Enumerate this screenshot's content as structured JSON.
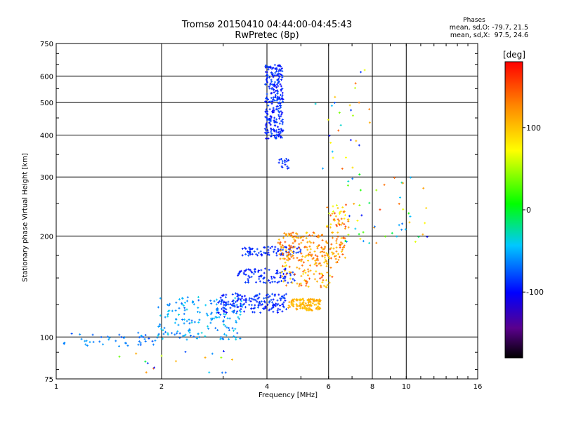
{
  "header": {
    "title_line1": "Tromsø 20150410 04:44:00-04:45:43",
    "title_line2": "RwPretec (8p)",
    "phase_label": "Phases",
    "phase_o": "mean, sd,O: -79.7, 21.5",
    "phase_x": "mean, sd,X:  97.5, 24.6"
  },
  "colorbar": {
    "title": "[deg]",
    "ticks": [
      "100",
      "0",
      "-100"
    ],
    "tick_values": [
      100,
      0,
      -100
    ],
    "range": [
      -180,
      180
    ]
  },
  "chart_data": {
    "type": "scatter",
    "xlabel": "Frequency [MHz]",
    "ylabel": "Stationary phase Virtual Height [km]",
    "xscale": "log",
    "yscale": "log",
    "xlim": [
      1,
      16
    ],
    "ylim": [
      75,
      750
    ],
    "xticks": [
      1,
      2,
      4,
      6,
      8,
      10,
      16
    ],
    "xtick_labels": [
      "1",
      "2",
      "4",
      "6",
      "8",
      "10",
      "16"
    ],
    "yticks": [
      75,
      100,
      200,
      300,
      400,
      500,
      600,
      750
    ],
    "ytick_labels": [
      "75",
      "100",
      "200",
      "300",
      "400",
      "500",
      "600",
      "750"
    ],
    "grid": true,
    "color_variable": "phase [deg]",
    "point_groups": [
      {
        "kind": "O-mode E/F1 trace",
        "freq": [
          1.05,
          1.95
        ],
        "height": [
          93,
          103
        ],
        "phase": [
          -80,
          -50
        ],
        "count": 45
      },
      {
        "kind": "O-mode rising trace",
        "freq": [
          1.95,
          3.4
        ],
        "height": [
          98,
          132
        ],
        "phase": [
          -75,
          -35
        ],
        "count": 170
      },
      {
        "kind": "O-mode F1 trace",
        "freq": [
          2.9,
          4.6
        ],
        "height": [
          118,
          135
        ],
        "phase": [
          -100,
          -75
        ],
        "count": 170
      },
      {
        "kind": "O-mode F1 layer",
        "freq": [
          3.3,
          4.8
        ],
        "height": [
          145,
          160
        ],
        "phase": [
          -100,
          -80
        ],
        "count": 90
      },
      {
        "kind": "O-mode F2 band",
        "freq": [
          3.4,
          5.0
        ],
        "height": [
          175,
          186
        ],
        "phase": [
          -100,
          -75
        ],
        "count": 80
      },
      {
        "kind": "O-mode spread F",
        "freq": [
          3.95,
          4.45
        ],
        "height": [
          390,
          650
        ],
        "phase": [
          -105,
          -75
        ],
        "count": 260
      },
      {
        "kind": "O-mode upper branch",
        "freq": [
          4.3,
          4.65
        ],
        "height": [
          315,
          340
        ],
        "phase": [
          -95,
          -75
        ],
        "count": 18
      },
      {
        "kind": "X-mode cluster",
        "freq": [
          4.6,
          5.7
        ],
        "height": [
          120,
          130
        ],
        "phase": [
          95,
          120
        ],
        "count": 120
      },
      {
        "kind": "X-mode F1",
        "freq": [
          4.4,
          6.2
        ],
        "height": [
          140,
          165
        ],
        "phase": [
          80,
          155
        ],
        "count": 70
      },
      {
        "kind": "X-mode F2",
        "freq": [
          4.3,
          6.7
        ],
        "height": [
          165,
          205
        ],
        "phase": [
          90,
          150
        ],
        "count": 200
      },
      {
        "kind": "X-mode high",
        "freq": [
          5.9,
          6.9
        ],
        "height": [
          210,
          250
        ],
        "phase": [
          60,
          160
        ],
        "count": 45
      },
      {
        "kind": "scattered upper",
        "freq": [
          6.6,
          11.5
        ],
        "height": [
          190,
          300
        ],
        "phase": [
          -100,
          160
        ],
        "count": 50
      },
      {
        "kind": "scattered high",
        "freq": [
          5.5,
          8.0
        ],
        "height": [
          300,
          650
        ],
        "phase": [
          -100,
          150
        ],
        "count": 30
      },
      {
        "kind": "low noise",
        "freq": [
          1.5,
          3.2
        ],
        "height": [
          78,
          92
        ],
        "phase": [
          -120,
          150
        ],
        "count": 18
      }
    ]
  }
}
